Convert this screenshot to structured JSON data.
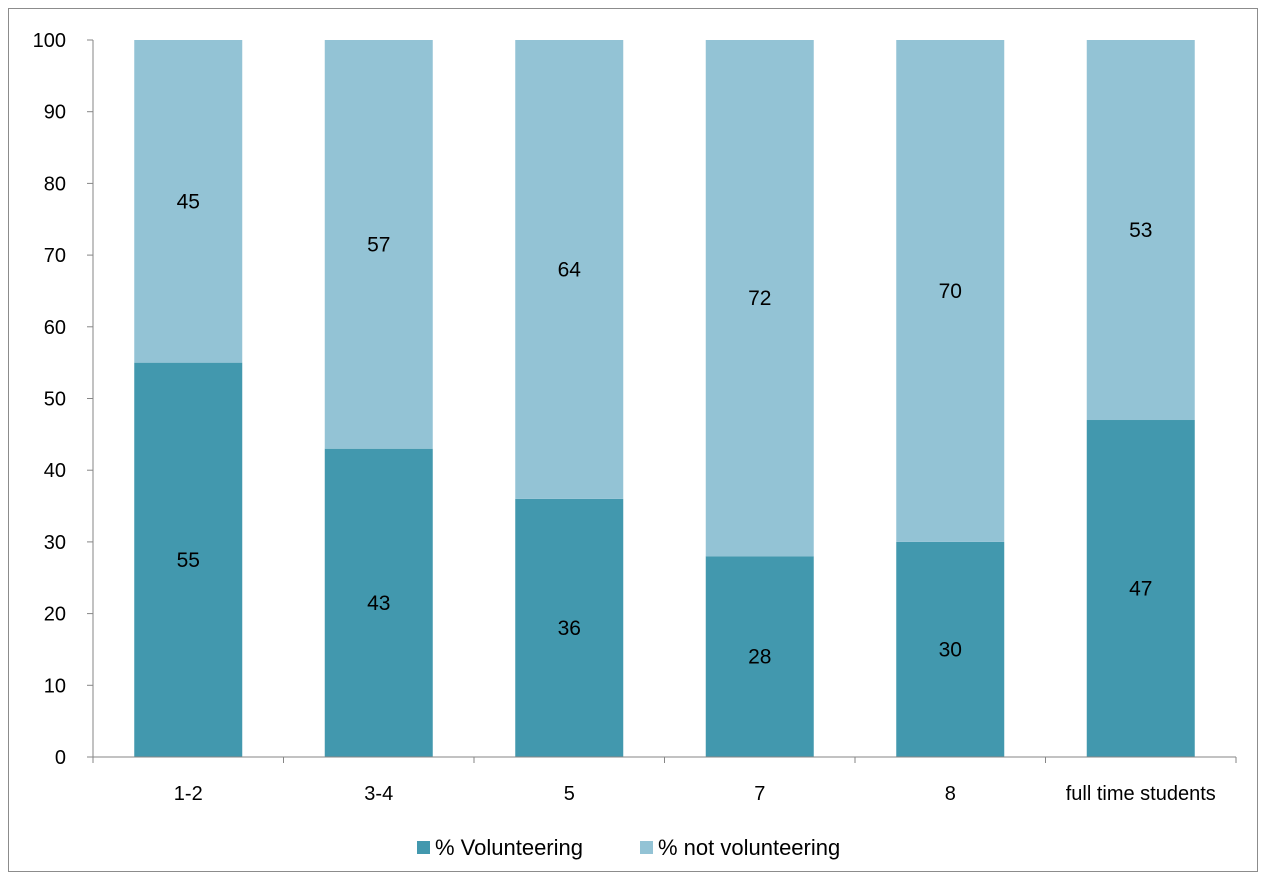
{
  "chart_data": {
    "type": "bar",
    "stacked": true,
    "categories": [
      "1-2",
      "3-4",
      "5",
      "7",
      "8",
      "full time students"
    ],
    "series": [
      {
        "name": "% Volunteering",
        "values": [
          55,
          43,
          36,
          28,
          30,
          47
        ],
        "color": "#4298AE"
      },
      {
        "name": "% not volunteering",
        "values": [
          45,
          57,
          64,
          72,
          70,
          53
        ],
        "color": "#93C3D5"
      }
    ],
    "title": "",
    "xlabel": "",
    "ylabel": "",
    "ylim": [
      0,
      100
    ],
    "yticks": [
      0,
      10,
      20,
      30,
      40,
      50,
      60,
      70,
      80,
      90,
      100
    ],
    "grid": false,
    "legend": "bottom-center"
  }
}
